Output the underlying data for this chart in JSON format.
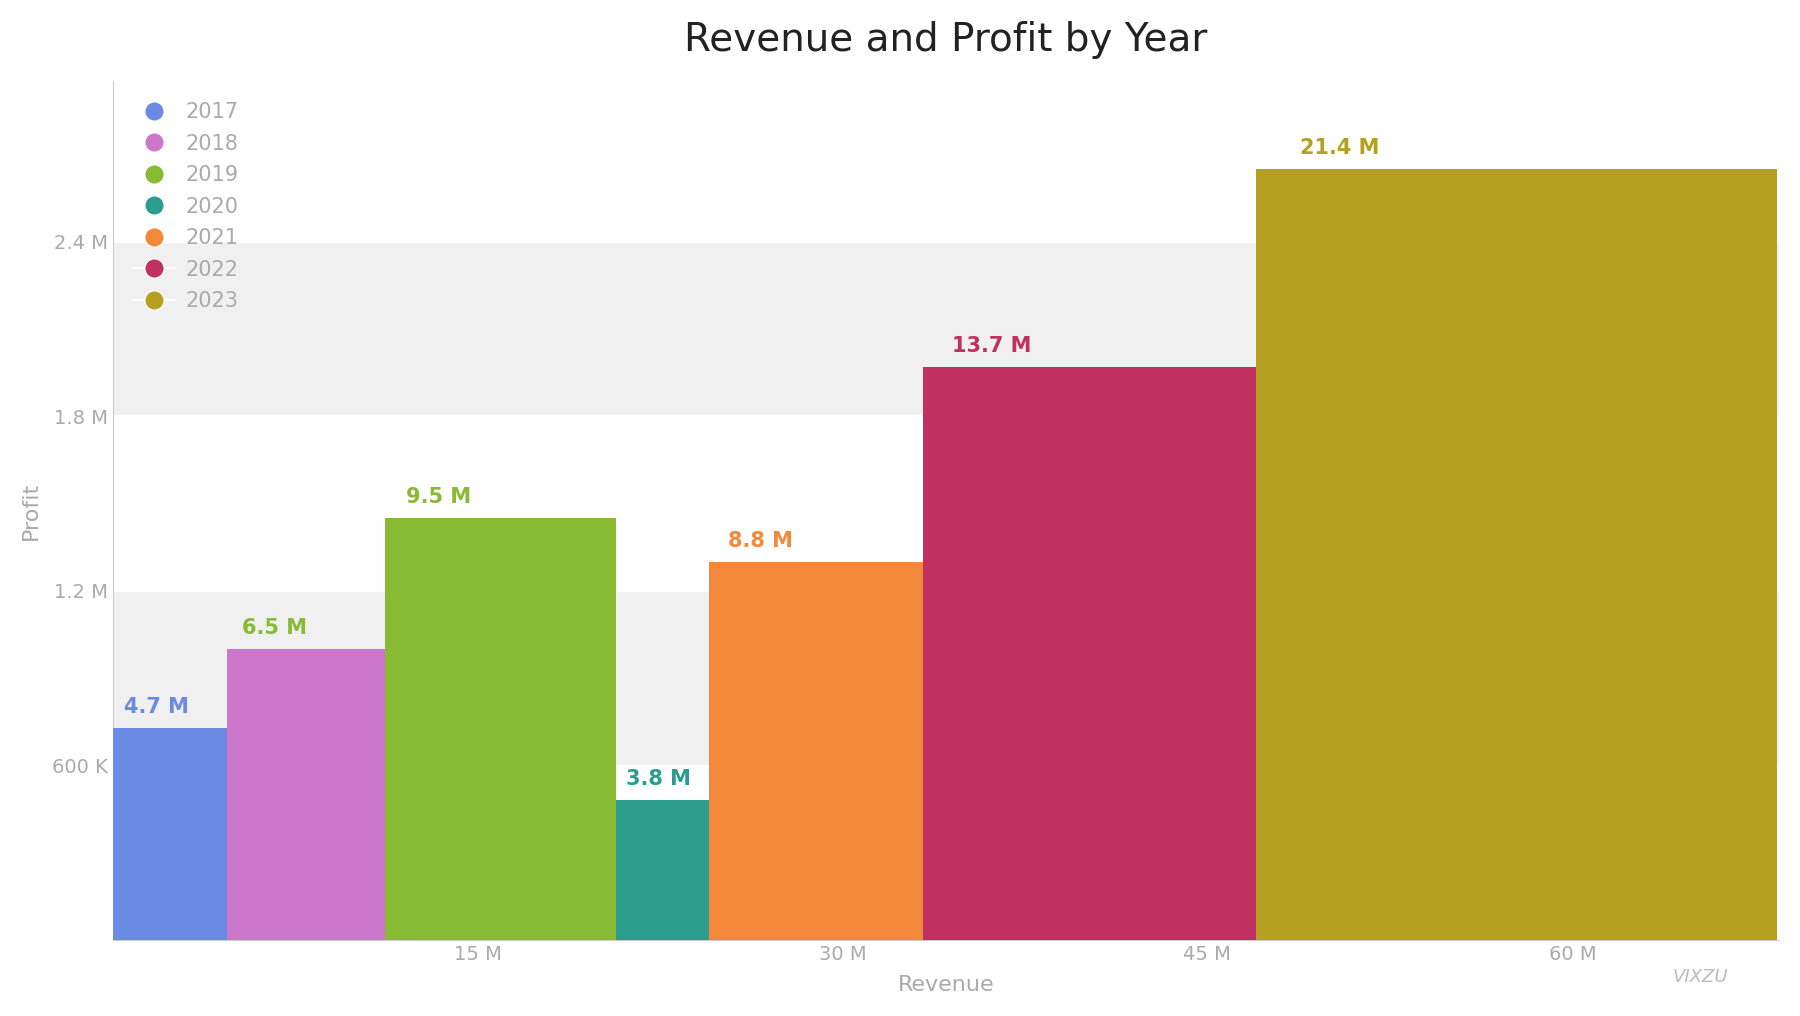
{
  "title": "Revenue and Profit by Year",
  "xlabel": "Revenue",
  "ylabel": "Profit",
  "years": [
    2017,
    2018,
    2019,
    2020,
    2021,
    2022,
    2023
  ],
  "revenue_labels": [
    "4.7 M",
    "6.5 M",
    "9.5 M",
    "3.8 M",
    "8.8 M",
    "13.7 M",
    "21.4 M"
  ],
  "revenue_vals": [
    4700000,
    6500000,
    9500000,
    3800000,
    8800000,
    13700000,
    21400000
  ],
  "profit_vals": [
    730000,
    1000000,
    1450000,
    480000,
    1300000,
    1970000,
    2650000
  ],
  "bar_colors": [
    "#6B8AE3",
    "#CC77CC",
    "#88BB33",
    "#2A9D8F",
    "#F4883A",
    "#C03060",
    "#B5A020"
  ],
  "label_colors": [
    "#6B8AE3",
    "#88BB33",
    "#88BB33",
    "#2A9D8F",
    "#F4883A",
    "#C03060",
    "#B5A020"
  ],
  "background_color": "#FFFFFF",
  "band_colors": [
    "#FFFFFF",
    "#F0F0F0",
    "#FFFFFF",
    "#F0F0F0",
    "#FFFFFF"
  ],
  "tick_color": "#AAAAAA",
  "title_fontsize": 28,
  "label_fontsize": 14,
  "axis_label_fontsize": 16,
  "legend_fontsize": 15,
  "ytick_labels": [
    "600 K",
    "1.2 M",
    "1.8 M",
    "2.4 M"
  ],
  "ytick_values": [
    600000,
    1200000,
    1800000,
    2400000
  ],
  "xtick_labels": [
    "15 M",
    "30 M",
    "45 M",
    "60 M"
  ],
  "xtick_values": [
    15000000,
    30000000,
    45000000,
    60000000
  ],
  "xlim": [
    0,
    68500000
  ],
  "ylim": [
    0,
    2950000
  ],
  "watermark": "VIXZU"
}
